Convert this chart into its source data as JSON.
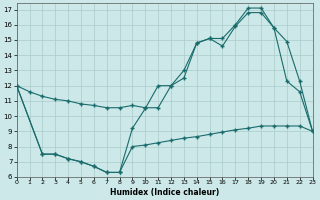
{
  "bg_color": "#cce8e8",
  "grid_color": "#aacccc",
  "line_color": "#1a6b6b",
  "xlabel": "Humidex (Indice chaleur)",
  "xlim": [
    0,
    23
  ],
  "ylim": [
    6,
    17.4
  ],
  "xticks": [
    0,
    1,
    2,
    3,
    4,
    5,
    6,
    7,
    8,
    9,
    10,
    11,
    12,
    13,
    14,
    15,
    16,
    17,
    18,
    19,
    20,
    21,
    22,
    23
  ],
  "yticks": [
    6,
    7,
    8,
    9,
    10,
    11,
    12,
    13,
    14,
    15,
    16,
    17
  ],
  "line1_x": [
    0,
    1,
    2,
    3,
    4,
    5,
    6,
    7,
    8,
    9,
    10,
    11,
    12,
    13,
    14,
    15,
    16,
    17,
    18,
    19,
    20,
    21,
    22,
    23
  ],
  "line1_y": [
    12.0,
    11.6,
    11.3,
    11.1,
    11.0,
    10.8,
    10.7,
    10.55,
    10.55,
    10.7,
    10.55,
    10.55,
    12.0,
    12.5,
    14.8,
    15.1,
    14.6,
    15.9,
    16.8,
    16.8,
    15.8,
    12.3,
    11.6,
    9.0
  ],
  "line2_x": [
    0,
    2,
    3,
    4,
    5,
    6,
    7,
    8,
    9,
    10,
    11,
    12,
    13,
    14,
    15,
    16,
    17,
    18,
    19,
    20,
    21,
    22,
    23
  ],
  "line2_y": [
    12.0,
    7.5,
    7.5,
    7.2,
    7.0,
    6.7,
    6.3,
    6.3,
    8.0,
    8.1,
    8.25,
    8.4,
    8.55,
    8.65,
    8.8,
    8.95,
    9.1,
    9.2,
    9.35,
    9.35,
    9.35,
    9.35,
    9.0
  ],
  "line3_x": [
    0,
    2,
    3,
    4,
    5,
    6,
    7,
    8,
    9,
    10,
    11,
    12,
    13,
    14,
    15,
    16,
    17,
    18,
    19,
    20,
    21,
    22,
    23
  ],
  "line3_y": [
    12.0,
    7.5,
    7.5,
    7.2,
    7.0,
    6.7,
    6.3,
    6.3,
    9.2,
    10.5,
    12.0,
    12.0,
    13.0,
    14.8,
    15.1,
    15.1,
    16.0,
    17.1,
    17.1,
    15.8,
    14.9,
    12.3,
    9.0
  ]
}
